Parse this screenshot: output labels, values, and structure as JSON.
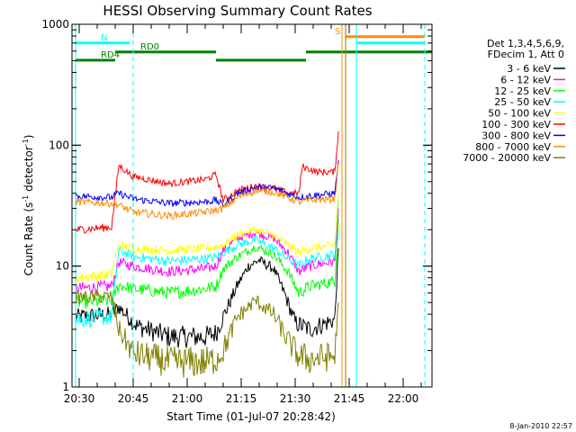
{
  "chart_data": {
    "type": "line",
    "title": "HESSI Observing Summary Count Rates",
    "xlabel": "Start Time (01-Jul-07 20:28:42)",
    "ylabel": "Count Rate (s",
    "ylabel_sup1": "-1",
    "ylabel_mid": " detector",
    "ylabel_sup2": "-1",
    "ylabel_end": ")",
    "y_scale": "log",
    "ylim": [
      1,
      1000
    ],
    "xlim": [
      "20:28",
      "22:08"
    ],
    "x_ticks": [
      "20:30",
      "20:45",
      "21:00",
      "21:15",
      "21:30",
      "21:45",
      "22:00"
    ],
    "y_ticks": [
      "1",
      "10",
      "100",
      "1000"
    ],
    "date_stamp": "8-Jan-2010 22:57",
    "legend_header": [
      "Det 1,3,4,5,6,9,",
      "FDecim 1, Att 0"
    ],
    "legend_position": "right",
    "series": [
      {
        "name": "3 - 6 keV",
        "color": "#000000",
        "points": [
          [
            "20:29",
            3.8
          ],
          [
            "20:39",
            4.0
          ],
          [
            "20:41",
            4.6
          ],
          [
            "20:46",
            3.2
          ],
          [
            "20:55",
            2.6
          ],
          [
            "21:05",
            2.6
          ],
          [
            "21:08",
            2.8
          ],
          [
            "21:10",
            3.8
          ],
          [
            "21:14",
            7.0
          ],
          [
            "21:17",
            10.0
          ],
          [
            "21:20",
            11.2
          ],
          [
            "21:24",
            9.5
          ],
          [
            "21:27",
            6.0
          ],
          [
            "21:30",
            3.4
          ],
          [
            "21:34",
            3.0
          ],
          [
            "21:41",
            3.6
          ],
          [
            "21:42",
            14.0
          ]
        ]
      },
      {
        "name": "6 - 12 keV",
        "color": "#ff00ff",
        "points": [
          [
            "20:29",
            6.5
          ],
          [
            "20:39",
            6.8
          ],
          [
            "20:41",
            10.8
          ],
          [
            "20:45",
            10.0
          ],
          [
            "20:55",
            9.0
          ],
          [
            "21:05",
            9.5
          ],
          [
            "21:08",
            10.0
          ],
          [
            "21:10",
            13.5
          ],
          [
            "21:14",
            17.0
          ],
          [
            "21:19",
            19.0
          ],
          [
            "21:24",
            17.0
          ],
          [
            "21:28",
            13.0
          ],
          [
            "21:31",
            9.0
          ],
          [
            "21:34",
            10.0
          ],
          [
            "21:41",
            11.0
          ],
          [
            "21:42",
            30.0
          ]
        ]
      },
      {
        "name": "12 - 25 keV",
        "color": "#00ff00",
        "points": [
          [
            "20:29",
            5.0
          ],
          [
            "20:39",
            5.2
          ],
          [
            "20:41",
            7.0
          ],
          [
            "20:45",
            6.5
          ],
          [
            "20:55",
            6.0
          ],
          [
            "21:05",
            6.5
          ],
          [
            "21:08",
            6.8
          ],
          [
            "21:10",
            9.5
          ],
          [
            "21:14",
            12.0
          ],
          [
            "21:19",
            14.5
          ],
          [
            "21:24",
            12.5
          ],
          [
            "21:28",
            9.0
          ],
          [
            "21:31",
            6.0
          ],
          [
            "21:34",
            6.8
          ],
          [
            "21:41",
            7.5
          ],
          [
            "21:42",
            25.0
          ]
        ]
      },
      {
        "name": "25 - 50 keV",
        "color": "#00ffff",
        "points": [
          [
            "20:29",
            3.6
          ],
          [
            "20:39",
            3.8
          ],
          [
            "20:41",
            13.5
          ],
          [
            "20:45",
            12.0
          ],
          [
            "20:55",
            11.0
          ],
          [
            "21:05",
            11.5
          ],
          [
            "21:08",
            11.8
          ],
          [
            "21:10",
            13.0
          ],
          [
            "21:14",
            15.0
          ],
          [
            "21:19",
            16.5
          ],
          [
            "21:24",
            14.0
          ],
          [
            "21:28",
            11.5
          ],
          [
            "21:31",
            10.0
          ],
          [
            "21:34",
            11.5
          ],
          [
            "21:41",
            12.5
          ],
          [
            "21:42",
            35.0
          ]
        ]
      },
      {
        "name": "50 - 100 keV",
        "color": "#ffff00",
        "points": [
          [
            "20:29",
            8.0
          ],
          [
            "20:39",
            8.5
          ],
          [
            "20:41",
            15.0
          ],
          [
            "20:45",
            14.0
          ],
          [
            "20:55",
            13.5
          ],
          [
            "21:05",
            14.0
          ],
          [
            "21:08",
            14.5
          ],
          [
            "21:10",
            15.0
          ],
          [
            "21:14",
            18.0
          ],
          [
            "21:19",
            20.0
          ],
          [
            "21:24",
            18.0
          ],
          [
            "21:28",
            15.0
          ],
          [
            "21:31",
            13.0
          ],
          [
            "21:34",
            14.0
          ],
          [
            "21:41",
            15.0
          ],
          [
            "21:42",
            40.0
          ]
        ]
      },
      {
        "name": "100 - 300 keV",
        "color": "#ff0000",
        "points": [
          [
            "20:29",
            20.0
          ],
          [
            "20:39",
            21.0
          ],
          [
            "20:41",
            68.0
          ],
          [
            "20:45",
            55.0
          ],
          [
            "20:55",
            48.0
          ],
          [
            "21:05",
            52.0
          ],
          [
            "21:08",
            57.0
          ],
          [
            "21:10",
            35.0
          ],
          [
            "21:14",
            42.0
          ],
          [
            "21:19",
            46.0
          ],
          [
            "21:24",
            44.0
          ],
          [
            "21:28",
            40.0
          ],
          [
            "21:31",
            40.0
          ],
          [
            "21:32",
            67.0
          ],
          [
            "21:36",
            60.0
          ],
          [
            "21:41",
            60.0
          ],
          [
            "21:42",
            130.0
          ]
        ]
      },
      {
        "name": "300 - 800 keV",
        "color": "#0000ff",
        "points": [
          [
            "20:29",
            38.0
          ],
          [
            "20:39",
            37.0
          ],
          [
            "20:41",
            40.0
          ],
          [
            "20:45",
            36.0
          ],
          [
            "20:55",
            33.0
          ],
          [
            "21:05",
            34.0
          ],
          [
            "21:08",
            35.0
          ],
          [
            "21:10",
            32.0
          ],
          [
            "21:14",
            40.0
          ],
          [
            "21:19",
            45.0
          ],
          [
            "21:24",
            44.0
          ],
          [
            "21:28",
            40.0
          ],
          [
            "21:31",
            37.0
          ],
          [
            "21:34",
            38.0
          ],
          [
            "21:41",
            40.0
          ],
          [
            "21:42",
            75.0
          ]
        ]
      },
      {
        "name": "800 - 7000 keV",
        "color": "#ff8c00",
        "points": [
          [
            "20:29",
            34.0
          ],
          [
            "20:39",
            33.0
          ],
          [
            "20:41",
            32.0
          ],
          [
            "20:45",
            28.0
          ],
          [
            "20:55",
            26.0
          ],
          [
            "21:05",
            28.0
          ],
          [
            "21:08",
            29.0
          ],
          [
            "21:10",
            30.0
          ],
          [
            "21:14",
            37.0
          ],
          [
            "21:19",
            42.0
          ],
          [
            "21:24",
            41.0
          ],
          [
            "21:28",
            37.0
          ],
          [
            "21:31",
            34.0
          ],
          [
            "21:34",
            35.0
          ],
          [
            "21:41",
            36.0
          ],
          [
            "21:42",
            70.0
          ]
        ]
      },
      {
        "name": "7000 - 20000 keV",
        "color": "#808000",
        "points": [
          [
            "20:29",
            5.5
          ],
          [
            "20:39",
            5.6
          ],
          [
            "20:41",
            3.0
          ],
          [
            "20:45",
            1.9
          ],
          [
            "20:55",
            1.6
          ],
          [
            "21:05",
            1.6
          ],
          [
            "21:08",
            1.7
          ],
          [
            "21:10",
            2.0
          ],
          [
            "21:14",
            3.8
          ],
          [
            "21:19",
            5.2
          ],
          [
            "21:24",
            4.0
          ],
          [
            "21:28",
            2.4
          ],
          [
            "21:31",
            1.8
          ],
          [
            "21:34",
            1.7
          ],
          [
            "21:41",
            1.8
          ],
          [
            "21:42",
            5.0
          ]
        ]
      }
    ],
    "flag_bars": [
      {
        "label": "N",
        "color": "#00ffff",
        "level": 700,
        "segments": [
          [
            "20:29",
            "20:44"
          ],
          [
            "21:47",
            "22:06"
          ]
        ]
      },
      {
        "label": "RD0",
        "color": "#008000",
        "level": 590,
        "segments": [
          [
            "20:40",
            "21:08"
          ],
          [
            "21:33",
            "22:08"
          ]
        ]
      },
      {
        "label": "RD4",
        "color": "#008000",
        "level": 505,
        "segments": [
          [
            "20:29",
            "20:40"
          ],
          [
            "21:08",
            "21:33"
          ]
        ]
      },
      {
        "label": "S",
        "color": "#ff8c00",
        "level": 790,
        "segments": [
          [
            "21:44",
            "22:06"
          ]
        ]
      }
    ],
    "vertical_lines": [
      {
        "time": "20:29",
        "color": "#00ffff",
        "style": "solid"
      },
      {
        "time": "20:45",
        "color": "#00ffff",
        "style": "dashed"
      },
      {
        "time": "21:43",
        "color": "#ff8c00",
        "style": "solid"
      },
      {
        "time": "21:44",
        "color": "#808000",
        "style": "solid"
      },
      {
        "time": "21:47",
        "color": "#00ffff",
        "style": "solid"
      },
      {
        "time": "22:06",
        "color": "#00ffff",
        "style": "dashed"
      }
    ]
  }
}
